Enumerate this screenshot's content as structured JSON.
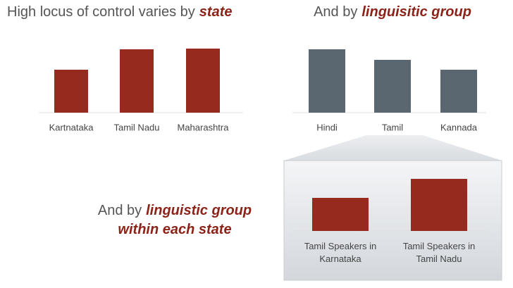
{
  "chart_data": [
    {
      "type": "bar",
      "title_parts": [
        "High locus of control varies by",
        "state"
      ],
      "categories": [
        "Kartnataka",
        "Tamil Nadu",
        "Maharashtra"
      ],
      "values": [
        61,
        90,
        91
      ],
      "color": "#962a1f",
      "ylim": [
        0,
        100
      ]
    },
    {
      "type": "bar",
      "title_parts": [
        "And by",
        "linguisitic group"
      ],
      "categories": [
        "Hindi",
        "Tamil",
        "Kannada"
      ],
      "values": [
        90,
        75,
        61
      ],
      "color": "#5a6670",
      "ylim": [
        0,
        100
      ]
    },
    {
      "type": "bar",
      "title_parts": [
        "And by",
        "linguistic group",
        "within each state"
      ],
      "categories": [
        "Tamil Speakers in Karnataka",
        "Tamil Speakers in Tamil Nadu"
      ],
      "values": [
        47,
        74
      ],
      "color": "#962a1f",
      "ylim": [
        0,
        100
      ]
    }
  ]
}
